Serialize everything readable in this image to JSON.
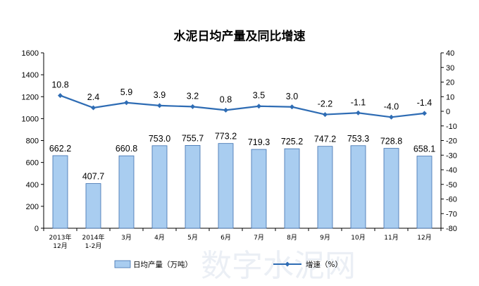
{
  "chart_data": {
    "type": "bar+line",
    "title": "水泥日均产量及同比增速",
    "categories": [
      [
        "2013年",
        "12月"
      ],
      [
        "2014年",
        "1-2月"
      ],
      [
        "3月"
      ],
      [
        "4月"
      ],
      [
        "5月"
      ],
      [
        "6月"
      ],
      [
        "7月"
      ],
      [
        "8月"
      ],
      [
        "9月"
      ],
      [
        "10月"
      ],
      [
        "11月"
      ],
      [
        "12月"
      ]
    ],
    "series": [
      {
        "name": "日均产量（万吨）",
        "type": "bar",
        "axis": "left",
        "values": [
          662.2,
          407.7,
          660.8,
          753.0,
          755.7,
          773.2,
          719.3,
          725.2,
          747.2,
          753.3,
          728.8,
          658.1
        ],
        "labels": [
          "662.2",
          "407.7",
          "660.8",
          "753.0",
          "755.7",
          "773.2",
          "719.3",
          "725.2",
          "747.2",
          "753.3",
          "728.8",
          "658.1"
        ]
      },
      {
        "name": "增速（%）",
        "type": "line",
        "axis": "right",
        "values": [
          10.8,
          2.4,
          5.9,
          3.9,
          3.2,
          0.8,
          3.5,
          3.0,
          -2.2,
          -1.1,
          -4.0,
          -1.4
        ],
        "labels": [
          "10.8",
          "2.4",
          "5.9",
          "3.9",
          "3.2",
          "0.8",
          "3.5",
          "3.0",
          "-2.2",
          "-1.1",
          "-4.0",
          "-1.4"
        ]
      }
    ],
    "y_left": {
      "min": 0,
      "max": 1600,
      "step": 200
    },
    "y_right": {
      "min": -80,
      "max": 40,
      "step": 10
    },
    "grid": false,
    "legend_position": "bottom",
    "colors": {
      "bar_fill": "#a9cdf0",
      "bar_stroke": "#3d6fae",
      "line": "#2e6cb4"
    }
  },
  "watermark": "数字水泥网"
}
